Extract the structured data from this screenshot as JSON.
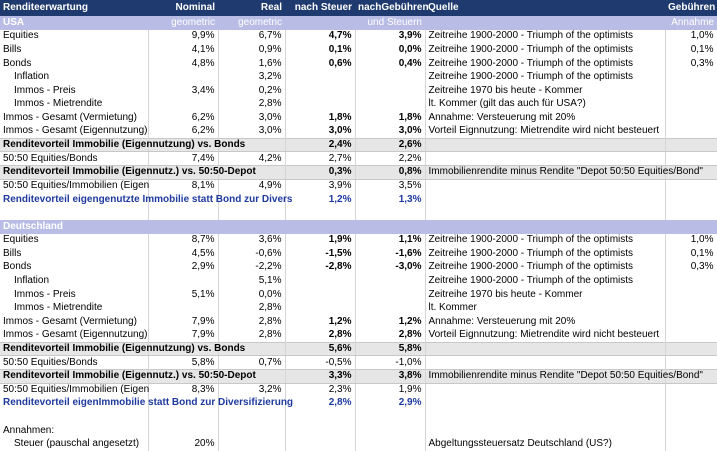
{
  "header": [
    "Renditeerwartung",
    "Nominal",
    "Real",
    "nach Steuer",
    "nachGebühren",
    "Quelle",
    "Gebühren"
  ],
  "sections": [
    {
      "band": [
        "USA",
        "geometric",
        "geometric",
        null,
        "und Steuern",
        null,
        "Annahme"
      ],
      "rows": [
        [
          "Equities",
          "9,9%",
          "6,7%",
          "4,7%",
          "3,9%",
          "Zeitreihe 1900-2000 - Triumph of the optimists",
          "1,0%"
        ],
        [
          "Bills",
          "4,1%",
          "0,9%",
          "0,1%",
          "0,0%",
          "Zeitreihe 1900-2000 - Triumph of the optimists",
          "0,1%"
        ],
        [
          "Bonds",
          "4,8%",
          "1,6%",
          "0,6%",
          "0,4%",
          "Zeitreihe 1900-2000 - Triumph of the optimists",
          "0,3%"
        ],
        [
          "Inflation",
          null,
          "3,2%",
          null,
          null,
          "Zeitreihe 1900-2000 - Triumph of the optimists",
          null
        ],
        [
          "Immos - Preis",
          "3,4%",
          "0,2%",
          null,
          null,
          "Zeitreihe 1970 bis heute - Kommer",
          null
        ],
        [
          "Immos - Mietrendite",
          null,
          "2,8%",
          null,
          null,
          "lt. Kommer (gilt das auch für USA?)",
          null
        ],
        [
          "Immos - Gesamt (Vermietung)",
          "6,2%",
          "3,0%",
          "1,8%",
          "1,8%",
          "Annahme: Versteuerung mit 20%",
          null
        ],
        [
          "Immos - Gesamt (Eigennutzung)",
          "6,2%",
          "3,0%",
          "3,0%",
          "3,0%",
          "Vorteil Eignnutzung: Mietrendite wird nicht besteuert",
          null
        ],
        [
          "Renditevorteil Immobilie (Eigennutzung) vs. Bonds",
          null,
          null,
          "2,4%",
          "2,6%",
          null,
          null
        ],
        [
          "50:50 Equities/Bonds",
          "7,4%",
          "4,2%",
          "2,7%",
          "2,2%",
          null,
          null
        ],
        [
          "Renditevorteil Immobilie (Eigennutz.) vs. 50:50-Depot",
          null,
          null,
          "0,3%",
          "0,8%",
          "Immobilienrendite minus Rendite \"Depot 50:50 Equities/Bond\"",
          null
        ],
        [
          "50:50 Equities/Immobilien (Eigen",
          "8,1%",
          "4,9%",
          "3,9%",
          "3,5%",
          null,
          null
        ],
        [
          "Renditevorteil eigengenutzte Immobilie statt Bond zur Divers",
          null,
          null,
          "1,2%",
          "1,3%",
          null,
          null
        ]
      ]
    },
    {
      "band": [
        "Deutschland",
        null,
        null,
        null,
        null,
        null,
        null
      ],
      "rows": [
        [
          "Equities",
          "8,7%",
          "3,6%",
          "1,9%",
          "1,1%",
          "Zeitreihe 1900-2000 - Triumph of the optimists",
          "1,0%"
        ],
        [
          "Bills",
          "4,5%",
          "-0,6%",
          "-1,5%",
          "-1,6%",
          "Zeitreihe 1900-2000 - Triumph of the optimists",
          "0,1%"
        ],
        [
          "Bonds",
          "2,9%",
          "-2,2%",
          "-2,8%",
          "-3,0%",
          "Zeitreihe 1900-2000 - Triumph of the optimists",
          "0,3%"
        ],
        [
          "Inflation",
          null,
          "5,1%",
          null,
          null,
          "Zeitreihe 1900-2000 - Triumph of the optimists",
          null
        ],
        [
          "Immos - Preis",
          "5,1%",
          "0,0%",
          null,
          null,
          "Zeitreihe 1970 bis heute - Kommer",
          null
        ],
        [
          "Immos - Mietrendite",
          null,
          "2,8%",
          null,
          null,
          "lt. Kommer",
          null
        ],
        [
          "Immos - Gesamt (Vermietung)",
          "7,9%",
          "2,8%",
          "1,2%",
          "1,2%",
          "Annahme: Versteuerung mit 20%",
          null
        ],
        [
          "Immos - Gesamt (Eigennutzung)",
          "7,9%",
          "2,8%",
          "2,8%",
          "2,8%",
          "Vorteil Eignnutzung: Mietrendite wird nicht besteuert",
          null
        ],
        [
          "Renditevorteil Immobilie (Eigennutzung) vs. Bonds",
          null,
          null,
          "5,6%",
          "5,8%",
          null,
          null
        ],
        [
          "50:50 Equities/Bonds",
          "5,8%",
          "0,7%",
          "-0,5%",
          "-1,0%",
          null,
          null
        ],
        [
          "Renditevorteil Immobilie (Eigennutz.) vs. 50:50-Depot",
          null,
          null,
          "3,3%",
          "3,8%",
          "Immobilienrendite minus Rendite \"Depot 50:50 Equities/Bond\"",
          null
        ],
        [
          "50:50 Equities/Immobilien (Eigen",
          "8,3%",
          "3,2%",
          "2,3%",
          "1,9%",
          null,
          null
        ],
        [
          "Renditevorteil eigenImmobilie statt Bond zur Diversifizierung",
          null,
          null,
          "2,8%",
          "2,9%",
          null,
          null
        ]
      ]
    }
  ],
  "annahmen": {
    "title": "Annahmen:",
    "rows": [
      [
        "Steuer (pauschal angesetzt)",
        "20%",
        null,
        null,
        null,
        "Abgeltungssteuersatz Deutschland (US?)",
        null
      ]
    ]
  }
}
